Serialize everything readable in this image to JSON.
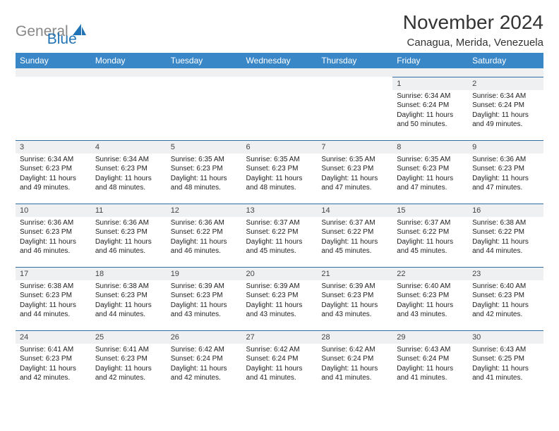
{
  "logo": {
    "text_general": "General",
    "text_blue": "Blue",
    "icon_color": "#2173b5"
  },
  "title": "November 2024",
  "location": "Canagua, Merida, Venezuela",
  "colors": {
    "header_bg": "#3a87c8",
    "header_text": "#ffffff",
    "daynum_bg": "#eef0f1",
    "row_border": "#2f6da3",
    "logo_gray": "#888888",
    "logo_blue": "#2173b5",
    "title_color": "#333333",
    "body_text": "#222222",
    "page_bg": "#ffffff"
  },
  "day_names": [
    "Sunday",
    "Monday",
    "Tuesday",
    "Wednesday",
    "Thursday",
    "Friday",
    "Saturday"
  ],
  "weeks": [
    [
      {
        "n": "",
        "sunrise": "",
        "sunset": "",
        "daylight": ""
      },
      {
        "n": "",
        "sunrise": "",
        "sunset": "",
        "daylight": ""
      },
      {
        "n": "",
        "sunrise": "",
        "sunset": "",
        "daylight": ""
      },
      {
        "n": "",
        "sunrise": "",
        "sunset": "",
        "daylight": ""
      },
      {
        "n": "",
        "sunrise": "",
        "sunset": "",
        "daylight": ""
      },
      {
        "n": "1",
        "sunrise": "Sunrise: 6:34 AM",
        "sunset": "Sunset: 6:24 PM",
        "daylight": "Daylight: 11 hours and 50 minutes."
      },
      {
        "n": "2",
        "sunrise": "Sunrise: 6:34 AM",
        "sunset": "Sunset: 6:24 PM",
        "daylight": "Daylight: 11 hours and 49 minutes."
      }
    ],
    [
      {
        "n": "3",
        "sunrise": "Sunrise: 6:34 AM",
        "sunset": "Sunset: 6:23 PM",
        "daylight": "Daylight: 11 hours and 49 minutes."
      },
      {
        "n": "4",
        "sunrise": "Sunrise: 6:34 AM",
        "sunset": "Sunset: 6:23 PM",
        "daylight": "Daylight: 11 hours and 48 minutes."
      },
      {
        "n": "5",
        "sunrise": "Sunrise: 6:35 AM",
        "sunset": "Sunset: 6:23 PM",
        "daylight": "Daylight: 11 hours and 48 minutes."
      },
      {
        "n": "6",
        "sunrise": "Sunrise: 6:35 AM",
        "sunset": "Sunset: 6:23 PM",
        "daylight": "Daylight: 11 hours and 48 minutes."
      },
      {
        "n": "7",
        "sunrise": "Sunrise: 6:35 AM",
        "sunset": "Sunset: 6:23 PM",
        "daylight": "Daylight: 11 hours and 47 minutes."
      },
      {
        "n": "8",
        "sunrise": "Sunrise: 6:35 AM",
        "sunset": "Sunset: 6:23 PM",
        "daylight": "Daylight: 11 hours and 47 minutes."
      },
      {
        "n": "9",
        "sunrise": "Sunrise: 6:36 AM",
        "sunset": "Sunset: 6:23 PM",
        "daylight": "Daylight: 11 hours and 47 minutes."
      }
    ],
    [
      {
        "n": "10",
        "sunrise": "Sunrise: 6:36 AM",
        "sunset": "Sunset: 6:23 PM",
        "daylight": "Daylight: 11 hours and 46 minutes."
      },
      {
        "n": "11",
        "sunrise": "Sunrise: 6:36 AM",
        "sunset": "Sunset: 6:23 PM",
        "daylight": "Daylight: 11 hours and 46 minutes."
      },
      {
        "n": "12",
        "sunrise": "Sunrise: 6:36 AM",
        "sunset": "Sunset: 6:22 PM",
        "daylight": "Daylight: 11 hours and 46 minutes."
      },
      {
        "n": "13",
        "sunrise": "Sunrise: 6:37 AM",
        "sunset": "Sunset: 6:22 PM",
        "daylight": "Daylight: 11 hours and 45 minutes."
      },
      {
        "n": "14",
        "sunrise": "Sunrise: 6:37 AM",
        "sunset": "Sunset: 6:22 PM",
        "daylight": "Daylight: 11 hours and 45 minutes."
      },
      {
        "n": "15",
        "sunrise": "Sunrise: 6:37 AM",
        "sunset": "Sunset: 6:22 PM",
        "daylight": "Daylight: 11 hours and 45 minutes."
      },
      {
        "n": "16",
        "sunrise": "Sunrise: 6:38 AM",
        "sunset": "Sunset: 6:22 PM",
        "daylight": "Daylight: 11 hours and 44 minutes."
      }
    ],
    [
      {
        "n": "17",
        "sunrise": "Sunrise: 6:38 AM",
        "sunset": "Sunset: 6:23 PM",
        "daylight": "Daylight: 11 hours and 44 minutes."
      },
      {
        "n": "18",
        "sunrise": "Sunrise: 6:38 AM",
        "sunset": "Sunset: 6:23 PM",
        "daylight": "Daylight: 11 hours and 44 minutes."
      },
      {
        "n": "19",
        "sunrise": "Sunrise: 6:39 AM",
        "sunset": "Sunset: 6:23 PM",
        "daylight": "Daylight: 11 hours and 43 minutes."
      },
      {
        "n": "20",
        "sunrise": "Sunrise: 6:39 AM",
        "sunset": "Sunset: 6:23 PM",
        "daylight": "Daylight: 11 hours and 43 minutes."
      },
      {
        "n": "21",
        "sunrise": "Sunrise: 6:39 AM",
        "sunset": "Sunset: 6:23 PM",
        "daylight": "Daylight: 11 hours and 43 minutes."
      },
      {
        "n": "22",
        "sunrise": "Sunrise: 6:40 AM",
        "sunset": "Sunset: 6:23 PM",
        "daylight": "Daylight: 11 hours and 43 minutes."
      },
      {
        "n": "23",
        "sunrise": "Sunrise: 6:40 AM",
        "sunset": "Sunset: 6:23 PM",
        "daylight": "Daylight: 11 hours and 42 minutes."
      }
    ],
    [
      {
        "n": "24",
        "sunrise": "Sunrise: 6:41 AM",
        "sunset": "Sunset: 6:23 PM",
        "daylight": "Daylight: 11 hours and 42 minutes."
      },
      {
        "n": "25",
        "sunrise": "Sunrise: 6:41 AM",
        "sunset": "Sunset: 6:23 PM",
        "daylight": "Daylight: 11 hours and 42 minutes."
      },
      {
        "n": "26",
        "sunrise": "Sunrise: 6:42 AM",
        "sunset": "Sunset: 6:24 PM",
        "daylight": "Daylight: 11 hours and 42 minutes."
      },
      {
        "n": "27",
        "sunrise": "Sunrise: 6:42 AM",
        "sunset": "Sunset: 6:24 PM",
        "daylight": "Daylight: 11 hours and 41 minutes."
      },
      {
        "n": "28",
        "sunrise": "Sunrise: 6:42 AM",
        "sunset": "Sunset: 6:24 PM",
        "daylight": "Daylight: 11 hours and 41 minutes."
      },
      {
        "n": "29",
        "sunrise": "Sunrise: 6:43 AM",
        "sunset": "Sunset: 6:24 PM",
        "daylight": "Daylight: 11 hours and 41 minutes."
      },
      {
        "n": "30",
        "sunrise": "Sunrise: 6:43 AM",
        "sunset": "Sunset: 6:25 PM",
        "daylight": "Daylight: 11 hours and 41 minutes."
      }
    ]
  ]
}
